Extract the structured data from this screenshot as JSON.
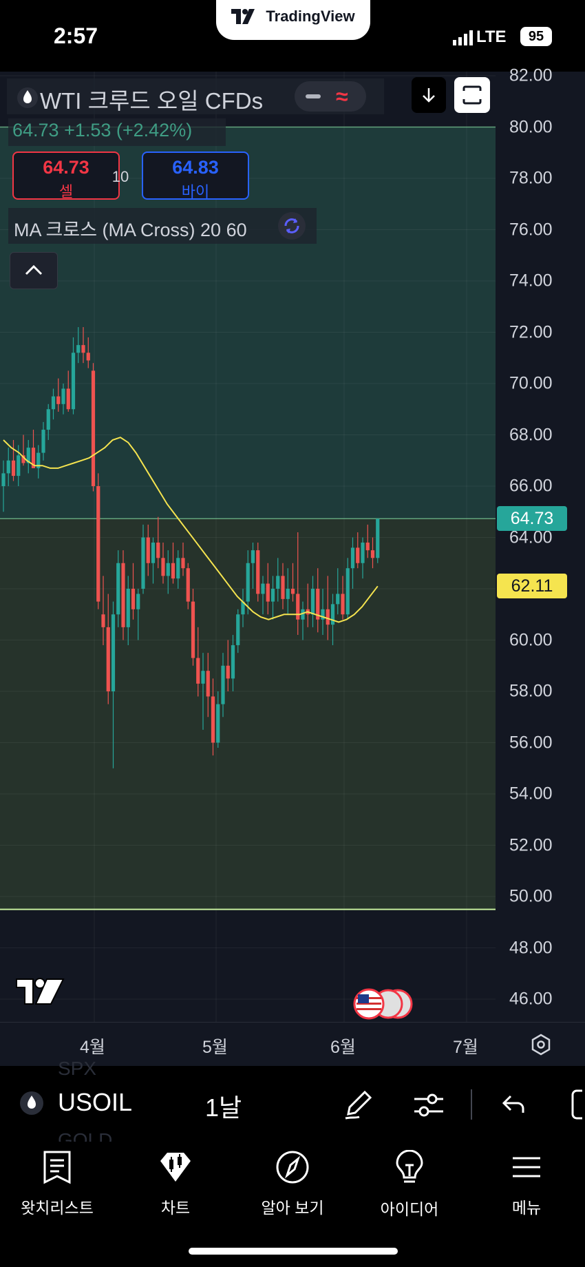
{
  "status_bar": {
    "time": "2:57",
    "network": "LTE",
    "battery": "95",
    "app_badge": "TradingView"
  },
  "header": {
    "title": "WTI 크루드 오일 CFDs",
    "price_line": "64.73  +1.53 (+2.42%)",
    "sell": {
      "price": "64.73",
      "label": "셀"
    },
    "buy": {
      "price": "64.83",
      "label": "바이"
    },
    "spread": "10",
    "indicator": "MA 크로스 (MA Cross) 20 60"
  },
  "price_axis": {
    "ticks": [
      "82.00",
      "80.00",
      "78.00",
      "76.00",
      "74.00",
      "72.00",
      "70.00",
      "68.00",
      "66.00",
      "64.00",
      "62.00",
      "60.00",
      "58.00",
      "56.00",
      "54.00",
      "52.00",
      "50.00",
      "48.00",
      "46.00"
    ],
    "current_price": "64.73",
    "ma_value": "62.11"
  },
  "time_axis": {
    "labels": [
      "4월",
      "5월",
      "6월",
      "7월"
    ]
  },
  "toolbar": {
    "symbol": "USOIL",
    "interval": "1날",
    "ghost_above": "SPX",
    "ghost_below": "GOLD"
  },
  "nav": [
    {
      "label": "왓치리스트",
      "icon": "watchlist-icon"
    },
    {
      "label": "차트",
      "icon": "chart-icon"
    },
    {
      "label": "알아 보기",
      "icon": "compass-icon"
    },
    {
      "label": "아이디어",
      "icon": "idea-icon"
    },
    {
      "label": "메뉴",
      "icon": "menu-icon"
    }
  ],
  "colors": {
    "up": "#26a69a",
    "down": "#ef5350",
    "ma": "#f5e44f",
    "upper_zone": "#1e3b3a",
    "lower_zone": "#26332b",
    "sell": "#f23645",
    "buy": "#2962ff"
  },
  "chart_data": {
    "type": "candlestick",
    "symbol": "USOIL",
    "interval": "1D",
    "ylim": [
      45,
      83
    ],
    "candles": [
      {
        "o": 66.0,
        "h": 67.0,
        "l": 65.0,
        "c": 66.5
      },
      {
        "o": 66.5,
        "h": 67.5,
        "l": 66.0,
        "c": 67.0
      },
      {
        "o": 67.0,
        "h": 67.8,
        "l": 66.2,
        "c": 66.4
      },
      {
        "o": 66.4,
        "h": 67.6,
        "l": 66.0,
        "c": 67.2
      },
      {
        "o": 67.2,
        "h": 68.0,
        "l": 66.8,
        "c": 66.9
      },
      {
        "o": 66.9,
        "h": 67.8,
        "l": 66.5,
        "c": 67.5
      },
      {
        "o": 67.5,
        "h": 68.2,
        "l": 67.0,
        "c": 66.7
      },
      {
        "o": 66.7,
        "h": 67.6,
        "l": 66.3,
        "c": 67.3
      },
      {
        "o": 67.3,
        "h": 68.5,
        "l": 67.0,
        "c": 68.2
      },
      {
        "o": 68.2,
        "h": 69.2,
        "l": 67.8,
        "c": 69.0
      },
      {
        "o": 69.0,
        "h": 69.8,
        "l": 68.6,
        "c": 69.5
      },
      {
        "o": 69.5,
        "h": 70.2,
        "l": 68.9,
        "c": 69.2
      },
      {
        "o": 69.2,
        "h": 70.0,
        "l": 68.8,
        "c": 69.8
      },
      {
        "o": 69.8,
        "h": 70.5,
        "l": 68.9,
        "c": 69.0
      },
      {
        "o": 69.0,
        "h": 71.8,
        "l": 68.8,
        "c": 71.2
      },
      {
        "o": 71.2,
        "h": 72.2,
        "l": 70.8,
        "c": 71.5
      },
      {
        "o": 71.5,
        "h": 72.2,
        "l": 70.8,
        "c": 71.2
      },
      {
        "o": 71.2,
        "h": 71.8,
        "l": 70.6,
        "c": 70.9
      },
      {
        "o": 70.5,
        "h": 70.8,
        "l": 65.8,
        "c": 66.0
      },
      {
        "o": 66.0,
        "h": 66.5,
        "l": 61.2,
        "c": 61.5
      },
      {
        "o": 61.0,
        "h": 62.5,
        "l": 59.8,
        "c": 60.5
      },
      {
        "o": 60.5,
        "h": 61.8,
        "l": 57.5,
        "c": 58.0
      },
      {
        "o": 58.0,
        "h": 61.5,
        "l": 55.0,
        "c": 61.0
      },
      {
        "o": 61.0,
        "h": 63.5,
        "l": 60.5,
        "c": 63.0
      },
      {
        "o": 63.0,
        "h": 63.5,
        "l": 60.0,
        "c": 60.5
      },
      {
        "o": 60.5,
        "h": 62.5,
        "l": 59.8,
        "c": 62.0
      },
      {
        "o": 62.0,
        "h": 63.0,
        "l": 60.8,
        "c": 61.2
      },
      {
        "o": 61.2,
        "h": 62.0,
        "l": 60.0,
        "c": 61.8
      },
      {
        "o": 62.0,
        "h": 64.5,
        "l": 61.8,
        "c": 64.0
      },
      {
        "o": 64.0,
        "h": 64.5,
        "l": 62.5,
        "c": 63.0
      },
      {
        "o": 63.0,
        "h": 64.0,
        "l": 62.2,
        "c": 63.8
      },
      {
        "o": 63.8,
        "h": 64.8,
        "l": 62.8,
        "c": 63.2
      },
      {
        "o": 63.2,
        "h": 63.8,
        "l": 62.2,
        "c": 62.5
      },
      {
        "o": 62.5,
        "h": 63.5,
        "l": 61.8,
        "c": 63.0
      },
      {
        "o": 63.0,
        "h": 63.8,
        "l": 62.2,
        "c": 62.4
      },
      {
        "o": 62.4,
        "h": 63.5,
        "l": 62.0,
        "c": 63.2
      },
      {
        "o": 63.2,
        "h": 63.8,
        "l": 62.5,
        "c": 62.8
      },
      {
        "o": 62.8,
        "h": 63.0,
        "l": 61.2,
        "c": 61.5
      },
      {
        "o": 61.5,
        "h": 62.0,
        "l": 59.0,
        "c": 59.3
      },
      {
        "o": 59.3,
        "h": 60.5,
        "l": 57.8,
        "c": 58.3
      },
      {
        "o": 58.3,
        "h": 59.5,
        "l": 56.5,
        "c": 58.8
      },
      {
        "o": 58.8,
        "h": 59.5,
        "l": 57.0,
        "c": 57.8
      },
      {
        "o": 57.8,
        "h": 58.5,
        "l": 55.5,
        "c": 56.0
      },
      {
        "o": 56.0,
        "h": 58.0,
        "l": 55.8,
        "c": 57.5
      },
      {
        "o": 57.5,
        "h": 59.5,
        "l": 57.0,
        "c": 59.0
      },
      {
        "o": 59.0,
        "h": 60.0,
        "l": 58.0,
        "c": 58.5
      },
      {
        "o": 58.5,
        "h": 60.2,
        "l": 58.0,
        "c": 59.8
      },
      {
        "o": 59.8,
        "h": 61.2,
        "l": 59.5,
        "c": 61.0
      },
      {
        "o": 61.0,
        "h": 62.0,
        "l": 60.5,
        "c": 61.5
      },
      {
        "o": 61.5,
        "h": 63.5,
        "l": 61.0,
        "c": 63.0
      },
      {
        "o": 63.0,
        "h": 63.8,
        "l": 62.0,
        "c": 63.5
      },
      {
        "o": 63.5,
        "h": 63.8,
        "l": 61.5,
        "c": 61.8
      },
      {
        "o": 61.8,
        "h": 62.5,
        "l": 61.0,
        "c": 62.2
      },
      {
        "o": 62.2,
        "h": 63.0,
        "l": 61.0,
        "c": 61.5
      },
      {
        "o": 61.5,
        "h": 62.5,
        "l": 60.8,
        "c": 62.0
      },
      {
        "o": 62.0,
        "h": 63.2,
        "l": 61.5,
        "c": 62.5
      },
      {
        "o": 62.5,
        "h": 63.0,
        "l": 61.2,
        "c": 61.6
      },
      {
        "o": 61.6,
        "h": 62.8,
        "l": 61.0,
        "c": 62.0
      },
      {
        "o": 62.0,
        "h": 63.0,
        "l": 61.5,
        "c": 61.8
      },
      {
        "o": 61.8,
        "h": 64.2,
        "l": 60.2,
        "c": 60.8
      },
      {
        "o": 60.8,
        "h": 61.5,
        "l": 60.0,
        "c": 61.2
      },
      {
        "o": 61.2,
        "h": 62.2,
        "l": 60.5,
        "c": 61.0
      },
      {
        "o": 61.0,
        "h": 62.5,
        "l": 60.5,
        "c": 62.0
      },
      {
        "o": 62.0,
        "h": 62.8,
        "l": 60.3,
        "c": 60.8
      },
      {
        "o": 60.8,
        "h": 62.0,
        "l": 60.2,
        "c": 61.2
      },
      {
        "o": 61.2,
        "h": 62.5,
        "l": 60.0,
        "c": 60.6
      },
      {
        "o": 60.6,
        "h": 61.8,
        "l": 59.8,
        "c": 61.4
      },
      {
        "o": 61.4,
        "h": 62.8,
        "l": 61.0,
        "c": 61.8
      },
      {
        "o": 61.8,
        "h": 62.5,
        "l": 60.8,
        "c": 61.0
      },
      {
        "o": 61.0,
        "h": 63.2,
        "l": 60.8,
        "c": 62.8
      },
      {
        "o": 62.8,
        "h": 64.0,
        "l": 62.0,
        "c": 63.6
      },
      {
        "o": 63.6,
        "h": 64.2,
        "l": 62.8,
        "c": 63.0
      },
      {
        "o": 63.0,
        "h": 64.0,
        "l": 62.4,
        "c": 63.8
      },
      {
        "o": 63.8,
        "h": 64.5,
        "l": 63.2,
        "c": 63.5
      },
      {
        "o": 63.5,
        "h": 64.0,
        "l": 62.8,
        "c": 63.2
      },
      {
        "o": 63.2,
        "h": 64.73,
        "l": 63.0,
        "c": 64.73
      }
    ],
    "ma_line": [
      67.8,
      67.5,
      67.3,
      67.0,
      66.8,
      66.8,
      66.7,
      66.7,
      66.8,
      66.9,
      67.0,
      67.1,
      67.3,
      67.5,
      67.8,
      67.9,
      67.7,
      67.3,
      66.8,
      66.3,
      65.8,
      65.3,
      64.9,
      64.5,
      64.1,
      63.7,
      63.3,
      62.9,
      62.5,
      62.1,
      61.7,
      61.4,
      61.1,
      60.9,
      60.8,
      60.9,
      61.0,
      61.0,
      61.0,
      61.1,
      61.0,
      60.9,
      60.8,
      60.7,
      60.8,
      61.0,
      61.3,
      61.7,
      62.1
    ],
    "horizontal_lines": [
      64.73,
      80.0,
      49.5
    ],
    "x_labels": [
      "4월",
      "5월",
      "6월",
      "7월"
    ]
  }
}
